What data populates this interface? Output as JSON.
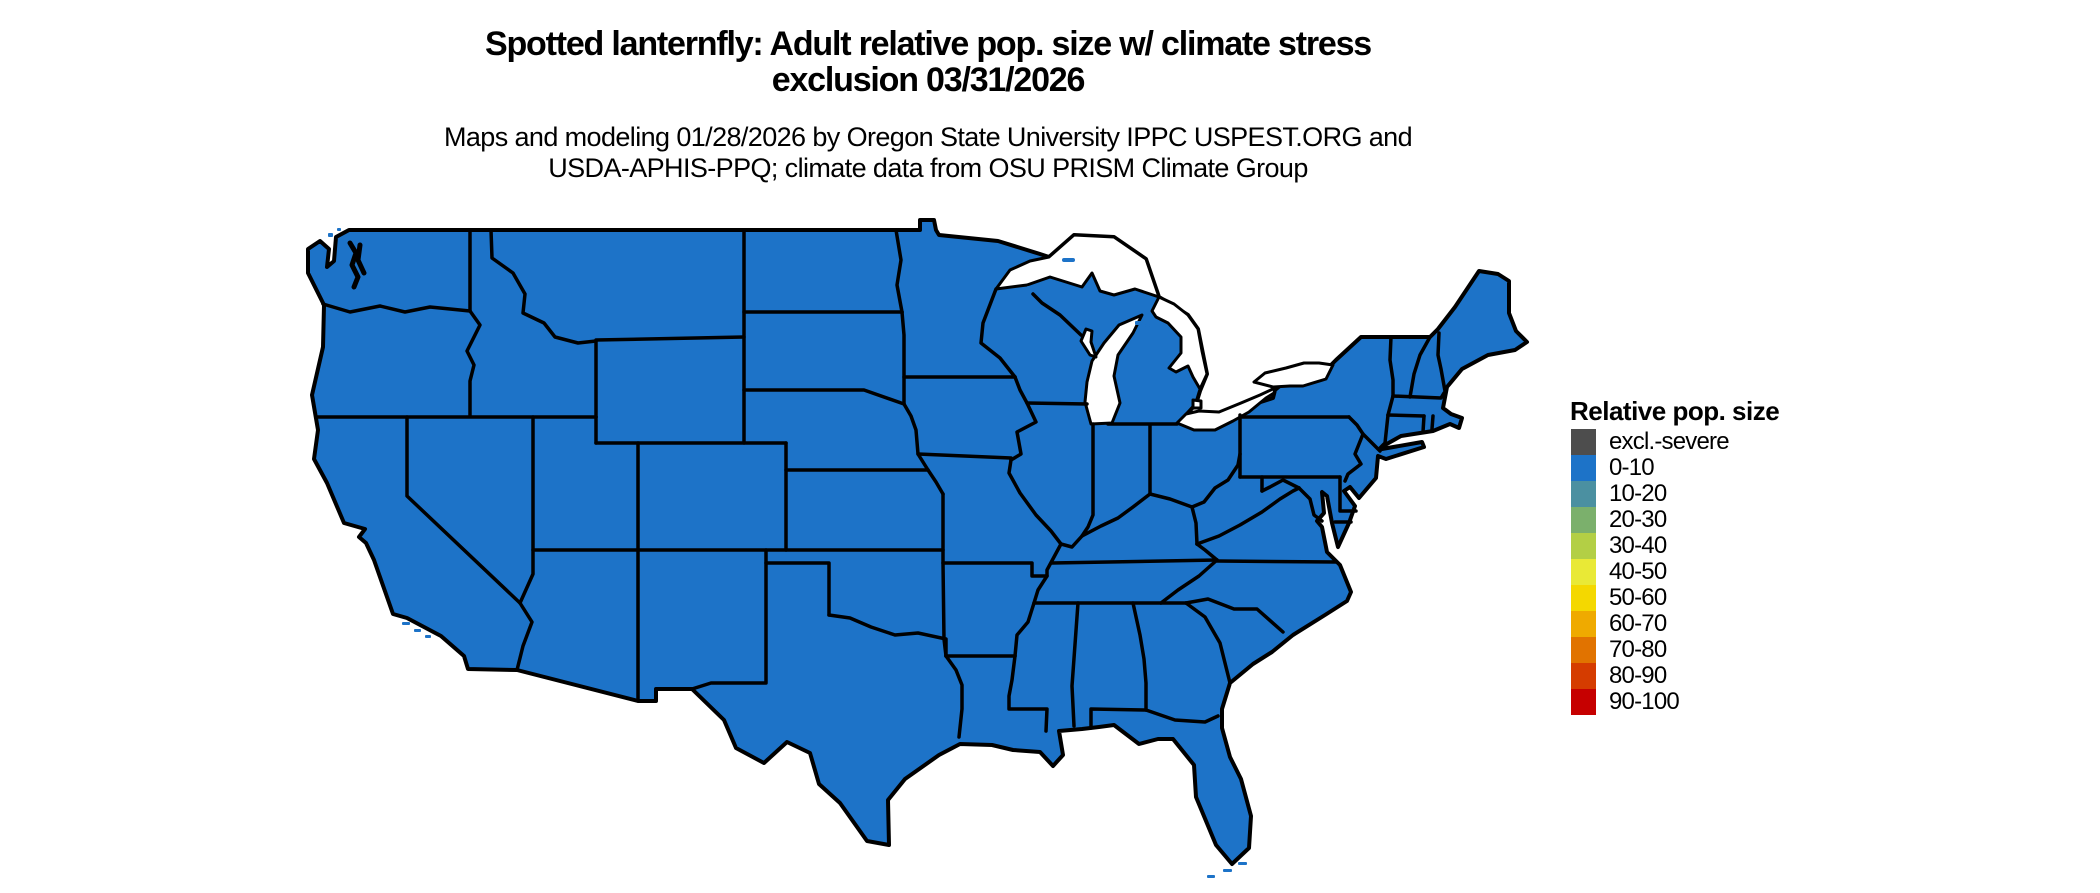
{
  "title": {
    "line1": "Spotted lanternfly: Adult relative pop. size w/ climate stress",
    "line2": "exclusion 03/31/2026"
  },
  "subtitle": {
    "line1": "Maps and modeling 01/28/2026 by Oregon State University IPPC USPEST.ORG and",
    "line2": "USDA-APHIS-PPQ; climate data from OSU PRISM Climate Group"
  },
  "legend": {
    "title": "Relative pop. size",
    "items": [
      {
        "label": "excl.-severe",
        "color": "#4d4d4d"
      },
      {
        "label": "0-10",
        "color": "#1d73c8"
      },
      {
        "label": "10-20",
        "color": "#4b90a1"
      },
      {
        "label": "20-30",
        "color": "#7bb06c"
      },
      {
        "label": "30-40",
        "color": "#b3cf45"
      },
      {
        "label": "40-50",
        "color": "#e9e936"
      },
      {
        "label": "50-60",
        "color": "#f4d800"
      },
      {
        "label": "60-70",
        "color": "#efaa00"
      },
      {
        "label": "70-80",
        "color": "#e17300"
      },
      {
        "label": "80-90",
        "color": "#d53c00"
      },
      {
        "label": "90-100",
        "color": "#c60000"
      }
    ]
  },
  "map": {
    "region": "Contiguous United States",
    "fill_color": "#1d73c8",
    "border_color": "#000000",
    "water_color": "#ffffff"
  },
  "chart_data": {
    "type": "choropleth",
    "title": "Spotted lanternfly: Adult relative pop. size w/ climate stress exclusion 03/31/2026",
    "region": "Contiguous United States (lower 48 states)",
    "variable": "Relative pop. size",
    "date_shown": "03/31/2026",
    "model_date": "01/28/2026",
    "classes": [
      "excl.-severe",
      "0-10",
      "10-20",
      "20-30",
      "30-40",
      "40-50",
      "50-60",
      "60-70",
      "70-80",
      "80-90",
      "90-100"
    ],
    "class_colors": [
      "#4d4d4d",
      "#1d73c8",
      "#4b90a1",
      "#7bb06c",
      "#b3cf45",
      "#e9e936",
      "#f4d800",
      "#efaa00",
      "#e17300",
      "#d53c00",
      "#c60000"
    ],
    "values": "Entire mapped area (all 48 states) is displayed in the 0-10 class (blue); no areas shown in any other class",
    "legend_position": "right of map",
    "background": "#ffffff"
  }
}
